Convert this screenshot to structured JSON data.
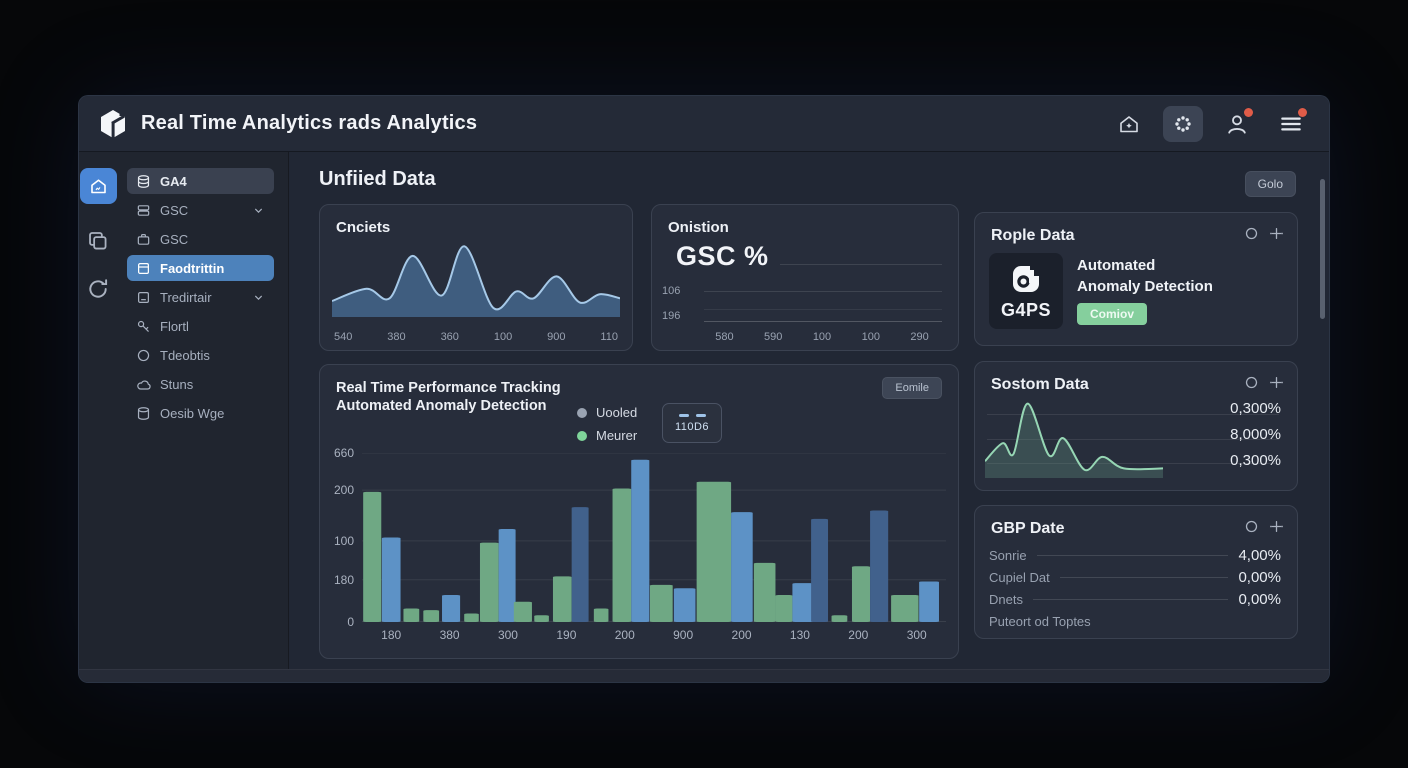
{
  "app": {
    "window_title": "Real Time Analytics rads Analytics"
  },
  "header": {
    "icons": [
      "home-icon",
      "settings-icon",
      "user-icon",
      "menu-icon"
    ],
    "badge_color": "#e05c48"
  },
  "sidebar": {
    "rail_icons": [
      "home-icon",
      "copy-icon",
      "refresh-icon"
    ],
    "items": [
      {
        "label": "GA4",
        "state": "active-dark"
      },
      {
        "label": "GSC",
        "chevron": true
      },
      {
        "label": "GSC"
      },
      {
        "label": "Faodtrittin",
        "state": "active-blue"
      },
      {
        "label": "Tredirtair",
        "chevron": true
      },
      {
        "label": "Flortl"
      },
      {
        "label": "Tdeobtis"
      },
      {
        "label": "Stuns"
      },
      {
        "label": "Oesib Wge"
      }
    ]
  },
  "main": {
    "heading": "Unfiied Data",
    "goto_button": "Golo"
  },
  "cards": {
    "cnciets": {
      "title": "Cnciets",
      "x_labels": [
        "540",
        "380",
        "360",
        "100",
        "900",
        "110"
      ]
    },
    "onistion": {
      "title": "Onistion",
      "big_label": "GSC %",
      "y_labels": [
        "106",
        "196"
      ],
      "x_labels": [
        "580",
        "590",
        "100",
        "100",
        "290"
      ]
    },
    "performance": {
      "title_line1": "Real Time Performance Tracking",
      "title_line2": "Automated Anomaly Detection",
      "action_button": "Eomile",
      "legend": [
        {
          "label": "Uooled",
          "color": "#9aa3b2"
        },
        {
          "label": "Meurer",
          "color": "#7fd49a"
        }
      ],
      "legend_box_label": "110D6"
    },
    "rople": {
      "title": "Rople Data",
      "tile_label": "G4PS",
      "line1": "Automated",
      "line2": "Anomaly Detection",
      "button": "Comiov",
      "button_color": "#85cf9d"
    },
    "sostom": {
      "title": "Sostom Data",
      "values": [
        "0,300%",
        "8,000%",
        "0,300%"
      ]
    },
    "gbp": {
      "title": "GBP Date",
      "rows": [
        {
          "label": "Sonrie",
          "value": "4,00%"
        },
        {
          "label": "Cupiel Dat",
          "value": "0,00%"
        },
        {
          "label": "Dnets",
          "value": "0,00%"
        },
        {
          "label": "Puteort od Toptes",
          "value": ""
        }
      ]
    }
  },
  "chart_data": [
    {
      "type": "area",
      "title": "Cnciets",
      "x_labels": [
        "540",
        "380",
        "360",
        "100",
        "900",
        "110"
      ],
      "points": [
        [
          0,
          20
        ],
        [
          12,
          38
        ],
        [
          20,
          24
        ],
        [
          28,
          86
        ],
        [
          38,
          28
        ],
        [
          46,
          100
        ],
        [
          56,
          10
        ],
        [
          64,
          34
        ],
        [
          70,
          24
        ],
        [
          78,
          56
        ],
        [
          86,
          18
        ],
        [
          93,
          30
        ],
        [
          100,
          24
        ]
      ],
      "stroke": "#a6c9e8",
      "fill": "rgba(68,102,140,0.85)",
      "ylim": [
        0,
        100
      ],
      "grid": false
    },
    {
      "type": "line",
      "title": "GSC %",
      "values": [],
      "y_tick_labels": [
        "106",
        "196"
      ],
      "x_labels": [
        "580",
        "590",
        "100",
        "100",
        "290"
      ],
      "note": "empty gridline panel"
    },
    {
      "type": "bar",
      "title": "Real Time Performance Tracking — Automated Anomaly Detection",
      "y_ticks": [
        "660",
        "200",
        "100",
        "180",
        "0"
      ],
      "grid_pos": [
        0,
        22,
        52,
        75,
        100
      ],
      "x_labels": [
        "180",
        "380",
        "300",
        "190",
        "200",
        "900",
        "200",
        "130",
        "200",
        "300"
      ],
      "colors": {
        "g": "#6fa884",
        "b": "#5d92c6",
        "d": "#41618c"
      },
      "bars": [
        [
          0.2,
          3.1,
          "g",
          77
        ],
        [
          3.4,
          3.2,
          "b",
          50
        ],
        [
          7.1,
          2.7,
          "g",
          8
        ],
        [
          10.5,
          2.7,
          "g",
          7
        ],
        [
          13.7,
          3.1,
          "b",
          16
        ],
        [
          17.5,
          2.5,
          "g",
          5
        ],
        [
          20.2,
          3.2,
          "g",
          47
        ],
        [
          23.4,
          2.9,
          "b",
          55
        ],
        [
          26.0,
          3.1,
          "g",
          12
        ],
        [
          29.5,
          2.5,
          "g",
          4
        ],
        [
          32.7,
          3.2,
          "g",
          27
        ],
        [
          35.9,
          2.9,
          "d",
          68
        ],
        [
          39.7,
          2.5,
          "g",
          8
        ],
        [
          42.9,
          3.2,
          "g",
          79
        ],
        [
          46.1,
          3.1,
          "b",
          96
        ],
        [
          49.3,
          3.9,
          "g",
          22
        ],
        [
          53.4,
          3.7,
          "b",
          20
        ],
        [
          57.3,
          5.9,
          "g",
          83
        ],
        [
          63.2,
          3.7,
          "b",
          65
        ],
        [
          67.1,
          3.7,
          "g",
          35
        ],
        [
          70.8,
          2.9,
          "g",
          16
        ],
        [
          73.7,
          3.6,
          "b",
          23
        ],
        [
          76.9,
          2.9,
          "d",
          61
        ],
        [
          80.4,
          2.7,
          "g",
          4
        ],
        [
          83.9,
          3.1,
          "g",
          33
        ],
        [
          87.0,
          3.1,
          "d",
          66
        ],
        [
          90.6,
          4.7,
          "g",
          16
        ],
        [
          95.4,
          3.4,
          "b",
          24
        ]
      ]
    },
    {
      "type": "area",
      "title": "Sostom Data",
      "points": [
        [
          0,
          20
        ],
        [
          10,
          45
        ],
        [
          16,
          30
        ],
        [
          24,
          100
        ],
        [
          36,
          28
        ],
        [
          44,
          52
        ],
        [
          56,
          8
        ],
        [
          66,
          26
        ],
        [
          78,
          10
        ],
        [
          100,
          10
        ]
      ],
      "stroke": "#96d6b4",
      "fill": "rgba(100,150,132,0.32)",
      "values_shown": [
        "0,300%",
        "8,000%",
        "0,300%"
      ]
    }
  ],
  "colors": {
    "accent_blue": "#4a86d6",
    "accent_green": "#7fd49a",
    "alert_red": "#e05c48",
    "card_bg": "#272d3b",
    "window_bg": "#212734"
  }
}
